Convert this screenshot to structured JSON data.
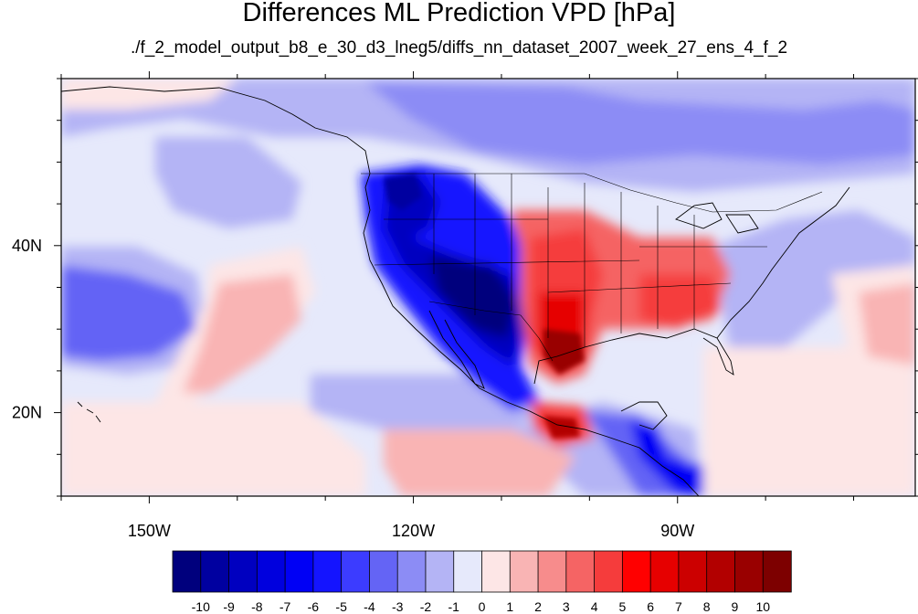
{
  "title": "Differences ML Prediction VPD [hPa]",
  "subtitle": "./f_2_model_output_b8_e_30_d3_lneg5/diffs_nn_dataset_2007_week_27_ens_4_f_2",
  "map": {
    "lon_range": [
      -160,
      -63
    ],
    "lat_range": [
      10,
      60
    ],
    "x_ticks": [
      {
        "lon": -150,
        "label": "150W"
      },
      {
        "lon": -120,
        "label": "120W"
      },
      {
        "lon": -90,
        "label": "90W"
      }
    ],
    "y_ticks": [
      {
        "lat": 40,
        "label": "40N"
      },
      {
        "lat": 20,
        "label": "20N"
      }
    ],
    "background_color": "#e6e9fb"
  },
  "colorbar": {
    "labels": [
      "-10",
      "-9",
      "-8",
      "-7",
      "-6",
      "-5",
      "-4",
      "-3",
      "-2",
      "-1",
      "0",
      "1",
      "2",
      "3",
      "4",
      "5",
      "6",
      "7",
      "8",
      "9",
      "10"
    ],
    "colors": [
      "#00007d",
      "#0000a0",
      "#0000c0",
      "#0000de",
      "#0000f5",
      "#1414ff",
      "#3c3cff",
      "#6464f5",
      "#8c8cf5",
      "#b4b4f5",
      "#e6e9fb",
      "#fde6e6",
      "#f9b4b4",
      "#f78c8c",
      "#f56464",
      "#f53c3c",
      "#ff0000",
      "#e60000",
      "#cc0000",
      "#b20000",
      "#990000",
      "#7d0000"
    ]
  }
}
